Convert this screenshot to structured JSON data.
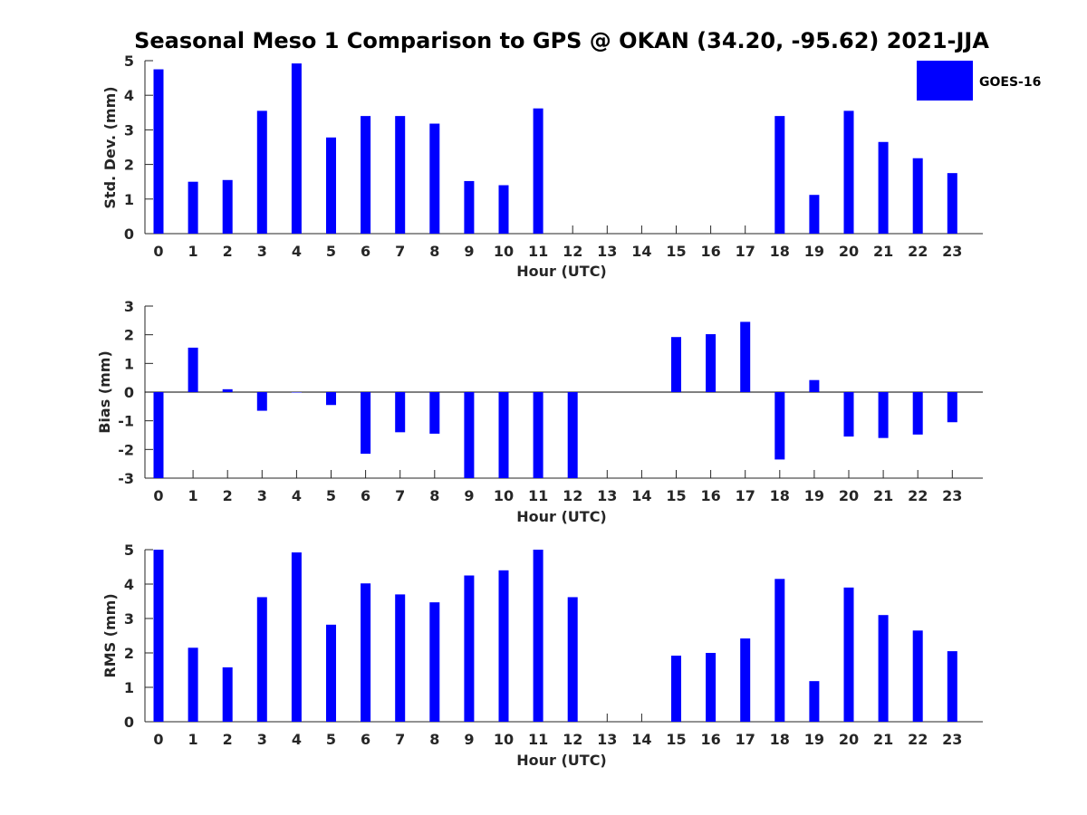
{
  "figure": {
    "title": "Seasonal Meso 1 Comparison to GPS @ OKAN (34.20, -95.62) 2021-JJA"
  },
  "legend": {
    "label": "GOES-16",
    "color": "#0000ff",
    "placement": "top-right"
  },
  "chart_data": [
    {
      "type": "bar",
      "xlabel": "Hour (UTC)",
      "ylabel": "Std. Dev. (mm)",
      "ylim": [
        0,
        5
      ],
      "yticks": [
        0,
        1,
        2,
        3,
        4,
        5
      ],
      "categories": [
        "0",
        "1",
        "2",
        "3",
        "4",
        "5",
        "6",
        "7",
        "8",
        "9",
        "10",
        "11",
        "12",
        "13",
        "14",
        "15",
        "16",
        "17",
        "18",
        "19",
        "20",
        "21",
        "22",
        "23"
      ],
      "series": [
        {
          "name": "GOES-16",
          "values": [
            4.75,
            1.5,
            1.55,
            3.55,
            4.92,
            2.78,
            3.4,
            3.4,
            3.18,
            1.52,
            1.4,
            3.62,
            null,
            null,
            null,
            null,
            null,
            null,
            3.4,
            1.12,
            3.55,
            2.65,
            2.18,
            1.75
          ]
        }
      ]
    },
    {
      "type": "bar",
      "xlabel": "Hour (UTC)",
      "ylabel": "Bias (mm)",
      "ylim": [
        -3,
        3
      ],
      "yticks": [
        -3,
        -2,
        -1,
        0,
        1,
        2,
        3
      ],
      "categories": [
        "0",
        "1",
        "2",
        "3",
        "4",
        "5",
        "6",
        "7",
        "8",
        "9",
        "10",
        "11",
        "12",
        "13",
        "14",
        "15",
        "16",
        "17",
        "18",
        "19",
        "20",
        "21",
        "22",
        "23"
      ],
      "series": [
        {
          "name": "GOES-16",
          "values": [
            -3.0,
            1.55,
            0.1,
            -0.65,
            0,
            -0.45,
            -2.15,
            -1.4,
            -1.45,
            -3.0,
            -3.0,
            -3.0,
            -3.0,
            null,
            null,
            1.92,
            2.02,
            2.45,
            -2.35,
            0.42,
            -1.55,
            -1.6,
            -1.48,
            -1.05
          ]
        }
      ]
    },
    {
      "type": "bar",
      "xlabel": "Hour (UTC)",
      "ylabel": "RMS (mm)",
      "ylim": [
        0,
        5
      ],
      "yticks": [
        0,
        1,
        2,
        3,
        4,
        5
      ],
      "categories": [
        "0",
        "1",
        "2",
        "3",
        "4",
        "5",
        "6",
        "7",
        "8",
        "9",
        "10",
        "11",
        "12",
        "13",
        "14",
        "15",
        "16",
        "17",
        "18",
        "19",
        "20",
        "21",
        "22",
        "23"
      ],
      "series": [
        {
          "name": "GOES-16",
          "values": [
            5.0,
            2.15,
            1.58,
            3.62,
            4.92,
            2.82,
            4.02,
            3.7,
            3.47,
            4.25,
            4.4,
            5.0,
            3.62,
            null,
            null,
            1.92,
            2.0,
            2.42,
            4.15,
            1.18,
            3.9,
            3.1,
            2.65,
            2.05
          ]
        }
      ]
    }
  ]
}
